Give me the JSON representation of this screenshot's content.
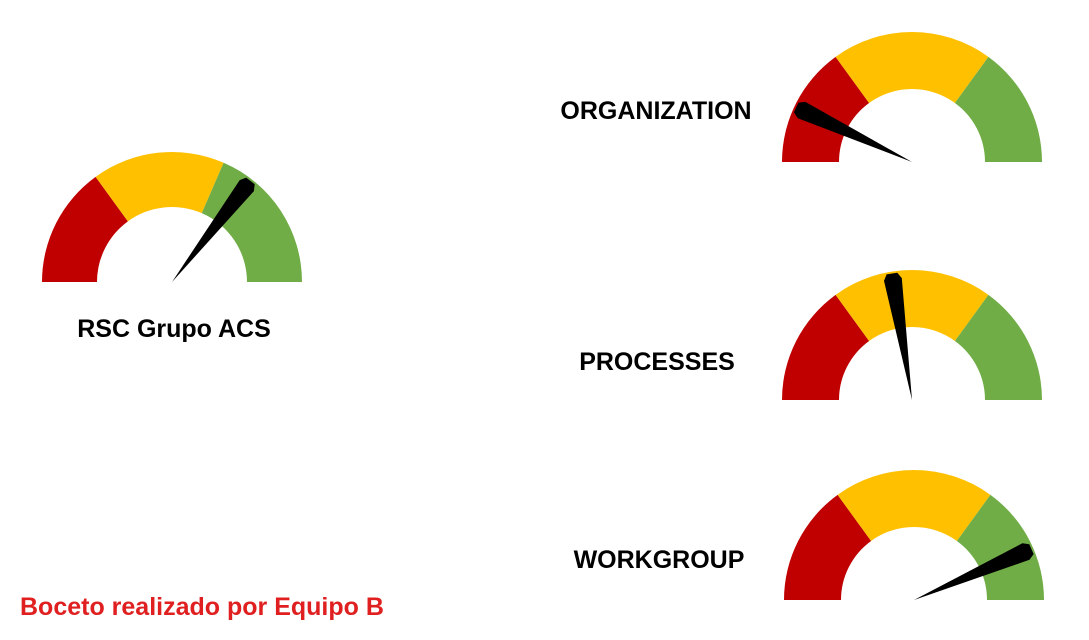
{
  "colors": {
    "red": "#c00000",
    "yellow": "#ffc000",
    "green": "#70ad47",
    "needle": "#000000",
    "caption": "#e02020"
  },
  "chart_data": [
    {
      "type": "gauge",
      "title": "RSC Grupo ACS",
      "value": 0.71,
      "bands": [
        {
          "color": "red",
          "from": 0,
          "to": 0.3
        },
        {
          "color": "yellow",
          "from": 0.3,
          "to": 0.63
        },
        {
          "color": "green",
          "from": 0.63,
          "to": 1
        }
      ]
    },
    {
      "type": "gauge",
      "title": "ORGANIZATION",
      "value": 0.14,
      "bands": [
        {
          "color": "red",
          "from": 0,
          "to": 0.3
        },
        {
          "color": "yellow",
          "from": 0.3,
          "to": 0.7
        },
        {
          "color": "green",
          "from": 0.7,
          "to": 1
        }
      ]
    },
    {
      "type": "gauge",
      "title": "PROCESSES",
      "value": 0.45,
      "bands": [
        {
          "color": "red",
          "from": 0,
          "to": 0.3
        },
        {
          "color": "yellow",
          "from": 0.3,
          "to": 0.7
        },
        {
          "color": "green",
          "from": 0.7,
          "to": 1
        }
      ]
    },
    {
      "type": "gauge",
      "title": "WORKGROUP",
      "value": 0.87,
      "bands": [
        {
          "color": "red",
          "from": 0,
          "to": 0.3
        },
        {
          "color": "yellow",
          "from": 0.3,
          "to": 0.7
        },
        {
          "color": "green",
          "from": 0.7,
          "to": 1
        }
      ]
    }
  ],
  "caption": "Boceto realizado por Equipo B"
}
